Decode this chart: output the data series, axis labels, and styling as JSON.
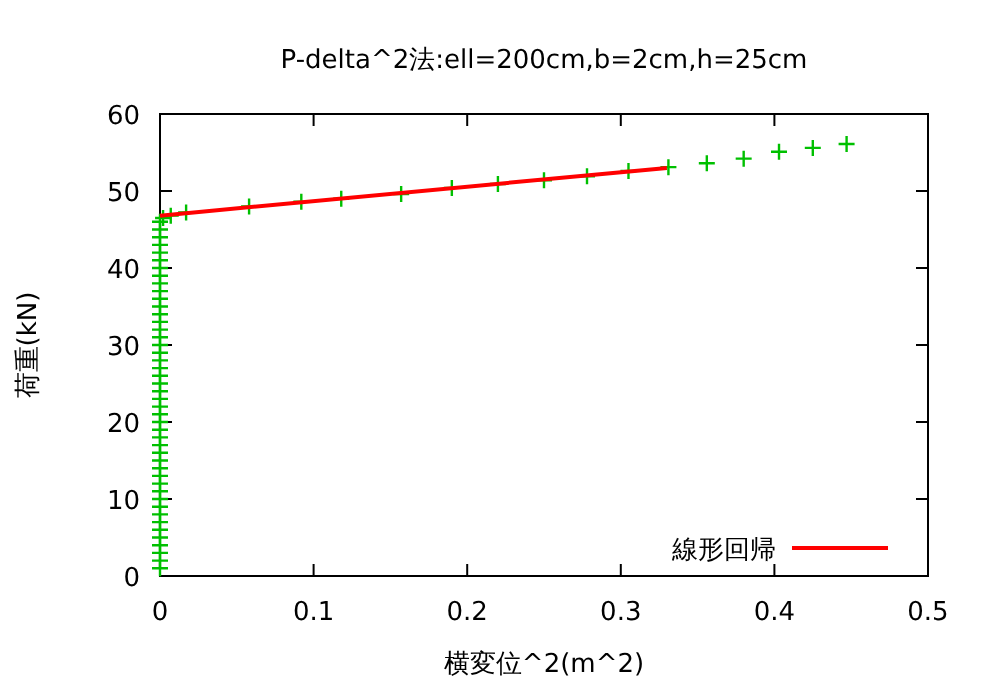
{
  "chart_data": {
    "type": "scatter",
    "title": "P-delta^2法:ell=200cm,b=2cm,h=25cm",
    "xlabel": "横変位^2(m^2)",
    "ylabel": "荷重(kN)",
    "xlim": [
      0,
      0.5
    ],
    "ylim": [
      0,
      60
    ],
    "xticks": [
      0,
      0.1,
      0.2,
      0.3,
      0.4,
      0.5
    ],
    "yticks": [
      0,
      10,
      20,
      30,
      40,
      50,
      60
    ],
    "grid": false,
    "legend": "bottom right",
    "marker": "cross",
    "series": [
      {
        "color": "#00c000",
        "x": [
          0,
          0,
          0,
          0,
          0,
          0,
          0,
          0,
          0,
          0,
          0,
          0,
          0,
          0,
          0,
          0,
          0,
          0,
          0,
          0,
          0,
          0,
          0,
          0,
          0,
          0,
          0,
          0,
          0,
          0,
          0,
          0,
          0,
          0,
          0,
          0,
          0,
          0,
          0,
          0,
          0,
          0,
          0,
          0,
          0,
          0,
          0.002,
          0.007,
          0.017,
          0.058,
          0.092,
          0.118,
          0.157,
          0.19,
          0.22,
          0.25,
          0.278,
          0.305,
          0.331,
          0.356,
          0.38,
          0.403,
          0.425,
          0.447
        ],
        "values": [
          1,
          2,
          3,
          4,
          5,
          6,
          7,
          8,
          9,
          10,
          11,
          12,
          13,
          14,
          15,
          16,
          17,
          18,
          19,
          20,
          21,
          22,
          23,
          24,
          25,
          26,
          27,
          28,
          29,
          30,
          31,
          32,
          33,
          34,
          35,
          36,
          37,
          38,
          39,
          40,
          41,
          42,
          43,
          44,
          45,
          46,
          46.5,
          46.8,
          47.2,
          48.0,
          48.6,
          49.0,
          49.6,
          50.4,
          50.9,
          51.4,
          51.9,
          52.6,
          53.1,
          53.6,
          54.2,
          55.1,
          55.6,
          56.1
        ]
      },
      {
        "type": "line",
        "marker": "none",
        "name": "線形回帰",
        "color": "#ff0000",
        "x": [
          0,
          0.33
        ],
        "values": [
          46.8,
          53.0
        ]
      }
    ]
  }
}
